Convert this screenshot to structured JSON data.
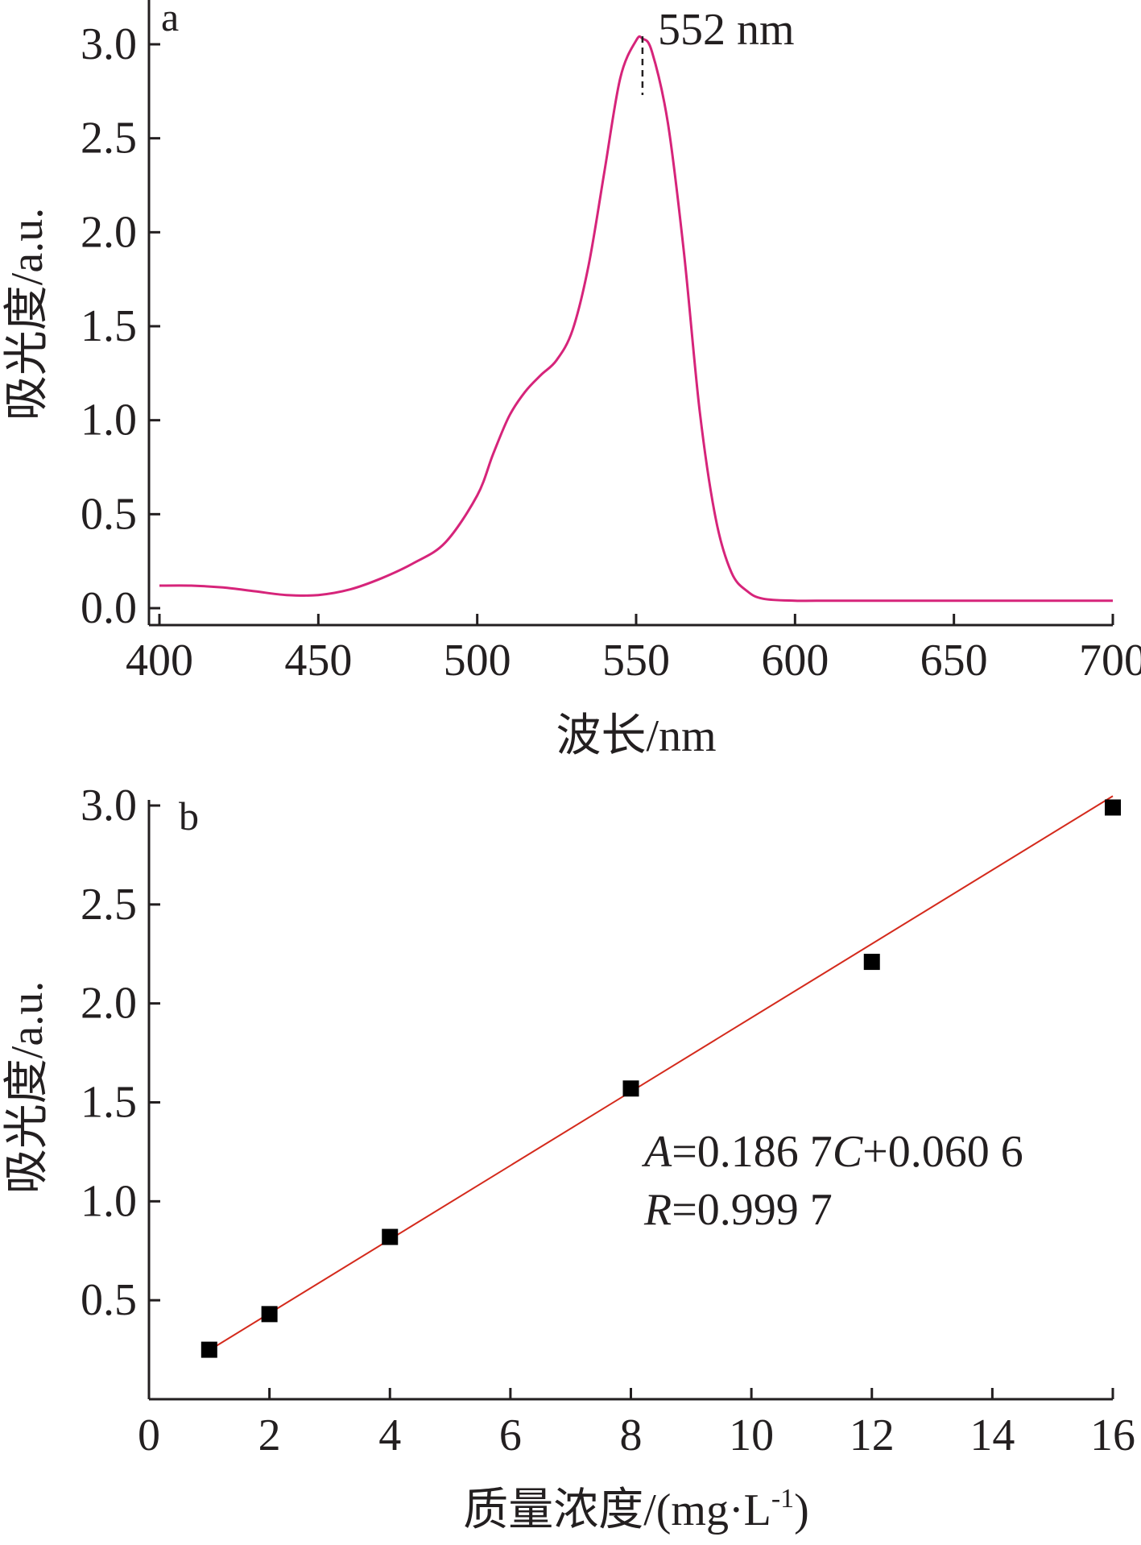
{
  "chart_data": [
    {
      "panel_label": "a",
      "type": "line",
      "xlabel": "波长/nm",
      "ylabel": "吸光度/a.u.",
      "xlim": [
        400,
        700
      ],
      "ylim": [
        0.0,
        3.0
      ],
      "xticks": [
        400,
        450,
        500,
        550,
        600,
        650,
        700
      ],
      "yticks": [
        0.0,
        0.5,
        1.0,
        1.5,
        2.0,
        2.5,
        3.0
      ],
      "x_tick_labels": [
        "400",
        "450",
        "500",
        "550",
        "600",
        "650",
        "700"
      ],
      "y_tick_labels": [
        "0.0",
        "0.5",
        "1.0",
        "1.5",
        "2.0",
        "2.5",
        "3.0"
      ],
      "grid": false,
      "color": "#d6247a",
      "annotation": {
        "text": "552 nm",
        "x": 552
      },
      "series": [
        {
          "x": [
            400,
            410,
            420,
            430,
            440,
            450,
            460,
            470,
            480,
            490,
            500,
            505,
            510,
            515,
            520,
            525,
            530,
            535,
            540,
            545,
            550,
            552,
            555,
            560,
            565,
            570,
            575,
            580,
            585,
            590,
            600,
            610,
            620,
            650,
            700
          ],
          "values": [
            0.12,
            0.12,
            0.11,
            0.09,
            0.07,
            0.07,
            0.1,
            0.16,
            0.24,
            0.35,
            0.6,
            0.82,
            1.02,
            1.15,
            1.24,
            1.32,
            1.48,
            1.82,
            2.32,
            2.82,
            3.02,
            3.03,
            2.96,
            2.58,
            1.9,
            1.05,
            0.48,
            0.19,
            0.09,
            0.05,
            0.04,
            0.04,
            0.04,
            0.04,
            0.04
          ]
        }
      ]
    },
    {
      "panel_label": "b",
      "type": "scatter",
      "xlabel": "质量浓度/(mg·L",
      "xlabel_sup": "-1",
      "xlabel_tail": ")",
      "ylabel": "吸光度/a.u.",
      "xlim": [
        0,
        16
      ],
      "ylim": [
        0.0,
        3.0
      ],
      "xticks": [
        0,
        2,
        4,
        6,
        8,
        10,
        12,
        14,
        16
      ],
      "yticks": [
        0.5,
        1.0,
        1.5,
        2.0,
        2.5,
        3.0
      ],
      "x_tick_labels": [
        "0",
        "2",
        "4",
        "6",
        "8",
        "10",
        "12",
        "14",
        "16"
      ],
      "y_tick_labels": [
        "0.5",
        "1.0",
        "1.5",
        "2.0",
        "2.5",
        "3.0"
      ],
      "grid": false,
      "color": "#d42a1c",
      "marker_color": "#000000",
      "series": [
        {
          "x": [
            1,
            2,
            4,
            8,
            12,
            16
          ],
          "values": [
            0.25,
            0.43,
            0.82,
            1.57,
            2.21,
            2.99
          ]
        }
      ],
      "fit_line": {
        "slope": 0.1867,
        "intercept": 0.0606,
        "x_range": [
          1,
          16
        ]
      },
      "equation": {
        "a_var": "A",
        "a_rest": "=0.186 7",
        "c_var": "C",
        "c_rest": "+0.060 6",
        "r_var": "R",
        "r_rest": "=0.999 7"
      }
    }
  ]
}
